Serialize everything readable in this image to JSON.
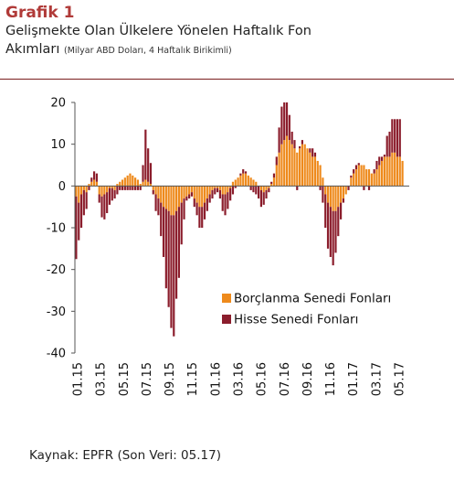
{
  "header": {
    "kicker": "Grafik 1",
    "title_line1": "Gelişmekte Olan Ülkelere Yönelen Haftalık Fon",
    "title_line2": "Akımları",
    "unit": "(Milyar ABD Doları, 4 Haftalık Birikimli)"
  },
  "footer": {
    "source": "Kaynak:  EPFR (Son Veri: 05.17)"
  },
  "colors": {
    "bond": "#ee8a1c",
    "equity": "#8b1d2c",
    "accent": "#b03a38"
  },
  "chart_data": {
    "type": "bar",
    "stacked": true,
    "title": "",
    "xlabel": "",
    "ylabel": "",
    "ylim": [
      -40,
      20
    ],
    "yticks": [
      20,
      10,
      0,
      -10,
      -20,
      -30,
      -40
    ],
    "grid": false,
    "legend_position": "lower-right",
    "x_tick_labels": [
      "01.15",
      "03.15",
      "05.15",
      "07.15",
      "09.15",
      "11.15",
      "01.16",
      "03.16",
      "05.16",
      "07.16",
      "09.16",
      "11.16",
      "01.17",
      "03.17",
      "05.17"
    ],
    "series": [
      {
        "name": "Borçlanma Senedi Fonları",
        "values": [
          -2.5,
          -4,
          -2,
          -1,
          -1.5,
          0.5,
          1,
          1.5,
          1,
          -2,
          -2.5,
          -2,
          -1.5,
          -0.5,
          -0.5,
          -1,
          0.5,
          1,
          1.5,
          2,
          2.5,
          3,
          2.5,
          2,
          1.5,
          0.5,
          1,
          1.5,
          1,
          0.5,
          -1,
          -2,
          -3,
          -4,
          -5,
          -5.5,
          -6,
          -7,
          -7,
          -6,
          -5,
          -4,
          -3,
          -2.5,
          -2,
          -1.5,
          -3,
          -4,
          -5,
          -5,
          -4,
          -3,
          -2,
          -1,
          -0.5,
          -0.5,
          -1,
          -2,
          -2,
          -1.5,
          -0.5,
          1,
          1.5,
          2,
          2.5,
          3,
          3,
          2.5,
          2,
          1.5,
          1,
          0,
          -1,
          -1.5,
          -1,
          -0.5,
          0.5,
          2,
          5,
          8,
          10,
          11,
          12,
          11,
          10,
          9,
          8,
          9,
          10,
          10,
          9,
          8,
          7,
          7,
          6,
          5,
          2,
          -2,
          -4,
          -5,
          -6,
          -6,
          -5,
          -4,
          -3,
          -2,
          0,
          2,
          3,
          4,
          5,
          5,
          5,
          4,
          4,
          3,
          3,
          4,
          5,
          6,
          7,
          7,
          7,
          8,
          8,
          7,
          7,
          6
        ],
        "color": "#ee8a1c"
      },
      {
        "name": "Hisse Senedi Fonları",
        "values": [
          -15,
          -9,
          -8,
          -6,
          -4,
          -1,
          1,
          2,
          2,
          -2,
          -5,
          -6,
          -5,
          -4,
          -3,
          -2,
          -2,
          -1,
          -1,
          -1,
          -1,
          -1,
          -1,
          -1,
          -1,
          -1,
          4,
          12,
          8,
          5,
          -1,
          -4,
          -4,
          -8,
          -12,
          -19,
          -23,
          -27,
          -29,
          -21,
          -17,
          -10,
          -5,
          -1,
          -1,
          -1,
          -2,
          -3,
          -5,
          -5,
          -4,
          -3,
          -2,
          -2,
          -1.5,
          -1,
          -2,
          -4,
          -5,
          -4,
          -3,
          -2,
          -0.5,
          0,
          0.5,
          1,
          0.5,
          0,
          -1,
          -1.5,
          -2,
          -3,
          -4,
          -3,
          -2,
          -1,
          0.5,
          1,
          2,
          6,
          9,
          9,
          8,
          6,
          3,
          2,
          -1,
          0.5,
          1,
          0,
          0,
          1,
          2,
          1,
          0,
          -1,
          -4,
          -8,
          -11,
          -12,
          -13,
          -10,
          -7,
          -4,
          -1,
          0,
          -1,
          0.5,
          1,
          1,
          0.5,
          0,
          -1,
          0,
          -1,
          0,
          1,
          2,
          2,
          1,
          0.5,
          5,
          6,
          8,
          8,
          9,
          9
        ]
      }
    ]
  }
}
